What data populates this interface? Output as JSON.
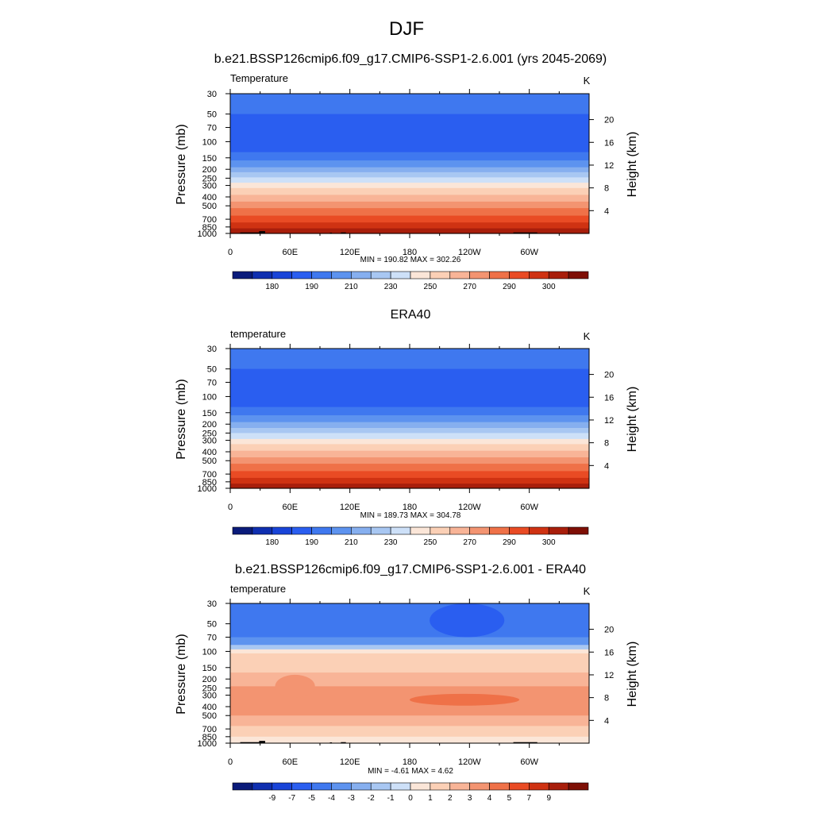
{
  "page": {
    "title": "DJF"
  },
  "colors": {
    "temperature_levels": [
      "#0a1b7a",
      "#0f2fb0",
      "#1944d8",
      "#2a5ef0",
      "#3f78ef",
      "#5d93ef",
      "#86afef",
      "#a8c7f2",
      "#cde0f8",
      "#fbe6d8",
      "#fbd0b6",
      "#f8b497",
      "#f39471",
      "#ef7148",
      "#e94b24",
      "#cf3212",
      "#a81e0b",
      "#7e0f05"
    ],
    "diff_levels": [
      "#0a1b7a",
      "#0f2fb0",
      "#1944d8",
      "#2a5ef0",
      "#3f78ef",
      "#5d93ef",
      "#86afef",
      "#a8c7f2",
      "#cde0f8",
      "#fbe6d8",
      "#fbd0b6",
      "#f8b497",
      "#f39471",
      "#ef7148",
      "#e94b24",
      "#cf3212",
      "#a81e0b",
      "#7e0f05"
    ],
    "topography": "#000000"
  },
  "chart_data": [
    {
      "type": "heatmap",
      "title": "b.e21.BSSP126cmip6.f09_g17.CMIP6-SSP1-2.6.001 (yrs 2045-2069)",
      "left_label": "Temperature",
      "units": "K",
      "ylabel": "Pressure (mb)",
      "ylabel_right": "Height (km)",
      "x_ticks": [
        "0",
        "60E",
        "120E",
        "180",
        "120W",
        "60W"
      ],
      "x_ticks_lon": [
        0,
        60,
        120,
        180,
        240,
        300
      ],
      "xlim": [
        0,
        360
      ],
      "y_ticks": [
        30,
        50,
        70,
        100,
        150,
        200,
        250,
        300,
        400,
        500,
        700,
        850,
        1000
      ],
      "y_range": [
        30,
        1000
      ],
      "height_ticks": [
        20,
        16,
        12,
        8,
        4
      ],
      "stats": "MIN = 190.82  MAX = 302.26",
      "colorbar_labels": [
        "180",
        "190",
        "210",
        "230",
        "250",
        "270",
        "290",
        "300"
      ],
      "colorbar_label_boxes": [
        1,
        3,
        5,
        7,
        9,
        11,
        13,
        15
      ],
      "field": "model",
      "bands": [
        {
          "p": [
            30,
            50
          ],
          "level": 4
        },
        {
          "p": [
            50,
            130
          ],
          "level": 3
        },
        {
          "p": [
            130,
            160
          ],
          "level": 4
        },
        {
          "p": [
            160,
            190
          ],
          "level": 5
        },
        {
          "p": [
            190,
            215
          ],
          "level": 6
        },
        {
          "p": [
            215,
            245
          ],
          "level": 7
        },
        {
          "p": [
            245,
            280
          ],
          "level": 8
        },
        {
          "p": [
            280,
            320
          ],
          "level": 9
        },
        {
          "p": [
            320,
            380
          ],
          "level": 10
        },
        {
          "p": [
            380,
            450
          ],
          "level": 11
        },
        {
          "p": [
            450,
            530
          ],
          "level": 12
        },
        {
          "p": [
            530,
            640
          ],
          "level": 13
        },
        {
          "p": [
            640,
            760
          ],
          "level": 14
        },
        {
          "p": [
            760,
            880
          ],
          "level": 15
        },
        {
          "p": [
            880,
            1000
          ],
          "level": 16
        }
      ],
      "topography": [
        {
          "lon": [
            10,
            35
          ],
          "p": 975
        },
        {
          "lon": [
            29,
            35
          ],
          "p": 945
        },
        {
          "lon": [
            100,
            102
          ],
          "p": 980
        },
        {
          "lon": [
            111,
            116
          ],
          "p": 975
        },
        {
          "lon": [
            284,
            308
          ],
          "p": 975
        }
      ]
    },
    {
      "type": "heatmap",
      "title": "ERA40",
      "left_label": "temperature",
      "units": "K",
      "ylabel": "Pressure (mb)",
      "ylabel_right": "Height (km)",
      "x_ticks": [
        "0",
        "60E",
        "120E",
        "180",
        "120W",
        "60W"
      ],
      "x_ticks_lon": [
        0,
        60,
        120,
        180,
        240,
        300
      ],
      "xlim": [
        0,
        360
      ],
      "y_ticks": [
        30,
        50,
        70,
        100,
        150,
        200,
        250,
        300,
        400,
        500,
        700,
        850,
        1000
      ],
      "y_range": [
        30,
        1000
      ],
      "height_ticks": [
        20,
        16,
        12,
        8,
        4
      ],
      "stats": "MIN = 189.73  MAX = 304.78",
      "colorbar_labels": [
        "180",
        "190",
        "210",
        "230",
        "250",
        "270",
        "290",
        "300"
      ],
      "colorbar_label_boxes": [
        1,
        3,
        5,
        7,
        9,
        11,
        13,
        15
      ],
      "field": "obs",
      "bands": [
        {
          "p": [
            30,
            50
          ],
          "level": 4
        },
        {
          "p": [
            50,
            130
          ],
          "level": 3
        },
        {
          "p": [
            130,
            160
          ],
          "level": 4
        },
        {
          "p": [
            160,
            190
          ],
          "level": 5
        },
        {
          "p": [
            190,
            220
          ],
          "level": 6
        },
        {
          "p": [
            220,
            250
          ],
          "level": 7
        },
        {
          "p": [
            250,
            290
          ],
          "level": 8
        },
        {
          "p": [
            290,
            330
          ],
          "level": 9
        },
        {
          "p": [
            330,
            390
          ],
          "level": 10
        },
        {
          "p": [
            390,
            460
          ],
          "level": 11
        },
        {
          "p": [
            460,
            540
          ],
          "level": 12
        },
        {
          "p": [
            540,
            650
          ],
          "level": 13
        },
        {
          "p": [
            650,
            770
          ],
          "level": 14
        },
        {
          "p": [
            770,
            890
          ],
          "level": 15
        },
        {
          "p": [
            890,
            1000
          ],
          "level": 16
        }
      ],
      "topography": []
    },
    {
      "type": "heatmap",
      "title": "b.e21.BSSP126cmip6.f09_g17.CMIP6-SSP1-2.6.001 - ERA40",
      "left_label": "temperature",
      "units": "K",
      "ylabel": "Pressure (mb)",
      "ylabel_right": "Height (km)",
      "x_ticks": [
        "0",
        "60E",
        "120E",
        "180",
        "120W",
        "60W"
      ],
      "x_ticks_lon": [
        0,
        60,
        120,
        180,
        240,
        300
      ],
      "xlim": [
        0,
        360
      ],
      "y_ticks": [
        30,
        50,
        70,
        100,
        150,
        200,
        250,
        300,
        400,
        500,
        700,
        850,
        1000
      ],
      "y_range": [
        30,
        1000
      ],
      "height_ticks": [
        20,
        16,
        12,
        8,
        4
      ],
      "stats": "MIN =  -4.61  MAX =   4.62",
      "colorbar_labels": [
        "-9",
        "-7",
        "-5",
        "-4",
        "-3",
        "-2",
        "-1",
        "0",
        "1",
        "2",
        "3",
        "4",
        "5",
        "7",
        "9"
      ],
      "colorbar_label_boxes": [
        1,
        2,
        3,
        4,
        5,
        6,
        7,
        8,
        9,
        10,
        11,
        12,
        13,
        14,
        15
      ],
      "field": "diff",
      "bands": [
        {
          "p": [
            30,
            70
          ],
          "level": 4
        },
        {
          "p": [
            70,
            85
          ],
          "level": 5
        },
        {
          "p": [
            85,
            95
          ],
          "level": 7
        },
        {
          "p": [
            95,
            105
          ],
          "level": 9
        },
        {
          "p": [
            105,
            170
          ],
          "level": 10
        },
        {
          "p": [
            170,
            240
          ],
          "level": 11
        },
        {
          "p": [
            240,
            500
          ],
          "level": 12
        },
        {
          "p": [
            500,
            650
          ],
          "level": 11
        },
        {
          "p": [
            650,
            850
          ],
          "level": 10
        },
        {
          "p": [
            850,
            1000
          ],
          "level": 9
        }
      ],
      "patches": [
        {
          "lon": [
            200,
            275
          ],
          "p": [
            30,
            70
          ],
          "level": 3
        },
        {
          "lon": [
            180,
            290
          ],
          "p": [
            290,
            390
          ],
          "level": 13
        },
        {
          "lon": [
            45,
            85
          ],
          "p": [
            180,
            320
          ],
          "level": 12
        }
      ],
      "topography": [
        {
          "lon": [
            10,
            35
          ],
          "p": 975
        },
        {
          "lon": [
            29,
            35
          ],
          "p": 945
        },
        {
          "lon": [
            100,
            102
          ],
          "p": 980
        },
        {
          "lon": [
            111,
            116
          ],
          "p": 975
        },
        {
          "lon": [
            284,
            308
          ],
          "p": 975
        }
      ]
    }
  ]
}
